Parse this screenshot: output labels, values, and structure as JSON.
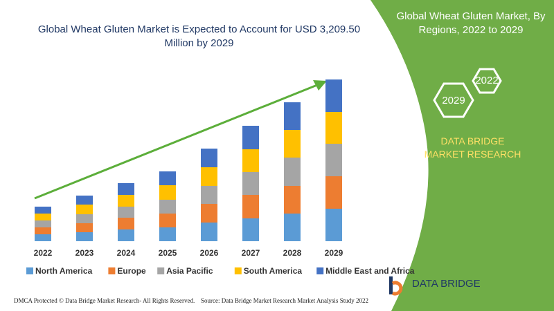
{
  "chart_data": {
    "type": "bar",
    "stacked": true,
    "title": "Global Wheat Gluten Market is Expected to Account for USD 3,209.50 Million by 2029",
    "categories": [
      "2022",
      "2023",
      "2024",
      "2025",
      "2026",
      "2027",
      "2028",
      "2029"
    ],
    "series": [
      {
        "name": "North America",
        "color": "#5b9bd5",
        "values": [
          10,
          13,
          17,
          20,
          27,
          33,
          40,
          47
        ]
      },
      {
        "name": "Europe",
        "color": "#ed7d31",
        "values": [
          10,
          13,
          17,
          20,
          27,
          34,
          40,
          47
        ]
      },
      {
        "name": "Asia Pacific",
        "color": "#a5a5a5",
        "values": [
          10,
          13,
          16,
          20,
          26,
          33,
          41,
          47
        ]
      },
      {
        "name": "South America",
        "color": "#ffc000",
        "values": [
          10,
          14,
          17,
          21,
          27,
          33,
          40,
          46
        ]
      },
      {
        "name": "Middle East and Africa",
        "color": "#4472c4",
        "values": [
          10,
          13,
          17,
          20,
          27,
          34,
          40,
          47
        ]
      }
    ],
    "ylim": [
      0,
      240
    ]
  },
  "panel": {
    "title": "Global Wheat Gluten Market, By Regions, 2022 to 2029",
    "hex_right": "2022",
    "hex_left": "2029",
    "brand": "DATA BRIDGE MARKET RESEARCH"
  },
  "logo": "DATA BRIDGE",
  "footer": {
    "left": "DMCA Protected © Data Bridge Market Research- All Rights Reserved.",
    "right": "Source: Data Bridge Market Research Market Analysis Study 2022"
  }
}
